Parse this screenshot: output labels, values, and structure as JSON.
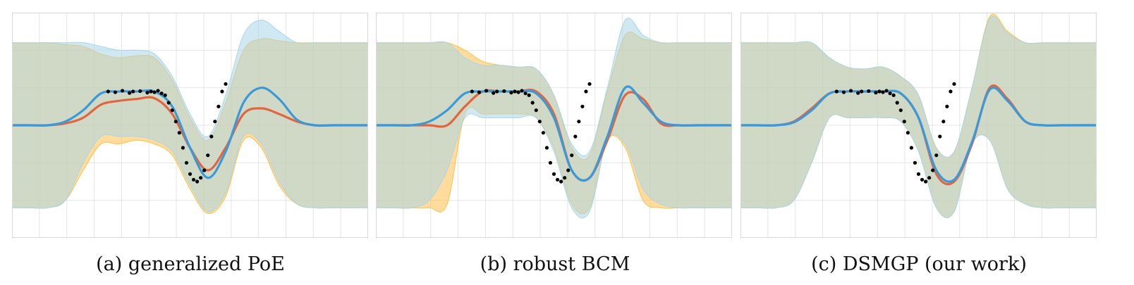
{
  "colors": {
    "orange_band": "#ffc04d",
    "blue_band": "#a9d6e8",
    "overlap_band": "#d5d2ab",
    "orange_line": "#e0663f",
    "blue_line": "#3a9ad9",
    "points": "#000000",
    "grid": "#e4e4e4"
  },
  "chart_data": [
    {
      "type": "line",
      "caption": "(a) generalized PoE",
      "x": [
        0,
        0.05,
        0.1,
        0.15,
        0.2,
        0.25,
        0.3,
        0.35,
        0.4,
        0.45,
        0.5,
        0.55,
        0.6,
        0.65,
        0.7,
        0.75,
        0.8,
        0.85,
        0.9,
        0.95,
        1
      ],
      "series": [
        {
          "color_key": "orange",
          "mean": [
            0,
            0,
            0,
            0.05,
            0.2,
            0.55,
            0.65,
            0.7,
            0.72,
            0.3,
            -0.6,
            -1.2,
            -0.6,
            0.3,
            0.45,
            0.3,
            0.1,
            0,
            0,
            0,
            0
          ],
          "upper": [
            2.2,
            2.2,
            2.2,
            2.15,
            2.1,
            1.9,
            1.8,
            1.85,
            1.8,
            1.2,
            0.2,
            -0.4,
            0.6,
            2.0,
            2.3,
            2.25,
            2.2,
            2.2,
            2.2,
            2.2,
            2.2
          ],
          "lower": [
            -2.2,
            -2.2,
            -2.2,
            -2.0,
            -1.2,
            -0.5,
            -0.5,
            -0.4,
            -0.5,
            -0.8,
            -1.7,
            -2.35,
            -1.9,
            -0.4,
            -0.6,
            -1.6,
            -2.1,
            -2.2,
            -2.2,
            -2.2,
            -2.2
          ]
        },
        {
          "color_key": "blue",
          "mean": [
            0,
            0,
            0,
            0.1,
            0.4,
            0.85,
            0.9,
            0.9,
            0.9,
            0.5,
            -0.6,
            -1.4,
            -0.7,
            0.6,
            1.0,
            0.7,
            0.15,
            0,
            0,
            0,
            0
          ],
          "upper": [
            2.2,
            2.2,
            2.2,
            2.2,
            2.2,
            2.1,
            2.0,
            2.0,
            1.9,
            1.3,
            0.3,
            -0.3,
            0.8,
            2.4,
            2.8,
            2.5,
            2.2,
            2.2,
            2.2,
            2.2,
            2.2
          ],
          "lower": [
            -2.2,
            -2.2,
            -2.2,
            -2.0,
            -1.0,
            -0.3,
            -0.3,
            -0.3,
            -0.4,
            -0.7,
            -1.6,
            -2.3,
            -1.8,
            -0.3,
            -0.5,
            -1.5,
            -2.1,
            -2.2,
            -2.2,
            -2.2,
            -2.2
          ]
        }
      ],
      "points": {
        "x": [
          0.27,
          0.29,
          0.31,
          0.33,
          0.34,
          0.36,
          0.38,
          0.39,
          0.4,
          0.41,
          0.42,
          0.43,
          0.44,
          0.45,
          0.46,
          0.47,
          0.48,
          0.49,
          0.5,
          0.51,
          0.52,
          0.53,
          0.54,
          0.55,
          0.56,
          0.57,
          0.58,
          0.59,
          0.6
        ],
        "y": [
          0.9,
          0.88,
          0.92,
          0.86,
          0.9,
          0.91,
          0.87,
          0.9,
          0.88,
          0.92,
          0.85,
          0.8,
          0.6,
          0.4,
          0.1,
          -0.2,
          -0.6,
          -1.0,
          -1.3,
          -1.45,
          -1.5,
          -1.4,
          -1.2,
          -0.8,
          -0.3,
          0.1,
          0.5,
          0.9,
          1.1
        ]
      },
      "ylim": [
        -3,
        3
      ],
      "xlim": [
        0,
        1
      ]
    },
    {
      "type": "line",
      "caption": "(b) robust BCM",
      "x": [
        0,
        0.05,
        0.1,
        0.15,
        0.2,
        0.25,
        0.3,
        0.35,
        0.4,
        0.45,
        0.5,
        0.55,
        0.6,
        0.65,
        0.7,
        0.75,
        0.8,
        0.85,
        0.9,
        0.95,
        1
      ],
      "series": [
        {
          "color_key": "orange",
          "mean": [
            0,
            0,
            0,
            0,
            0,
            0.5,
            0.9,
            0.9,
            0.9,
            0.9,
            0.3,
            -1.2,
            -1.4,
            -0.4,
            0.8,
            0.7,
            0.05,
            0,
            0,
            0,
            0
          ],
          "upper": [
            2.2,
            2.2,
            2.2,
            2.2,
            2.2,
            2.0,
            1.7,
            1.6,
            1.55,
            1.5,
            0.8,
            -0.6,
            -0.8,
            0.9,
            2.4,
            2.3,
            2.2,
            2.2,
            2.2,
            2.2,
            2.2
          ],
          "lower": [
            -2.2,
            -2.2,
            -2.2,
            -2.2,
            -2.1,
            0.3,
            0.3,
            0.3,
            0.3,
            0.2,
            -0.6,
            -2.1,
            -2.2,
            -0.4,
            -0.6,
            -2.0,
            -2.2,
            -2.2,
            -2.2,
            -2.2,
            -2.2
          ]
        },
        {
          "color_key": "blue",
          "mean": [
            0,
            0,
            0,
            0.1,
            0.4,
            0.85,
            0.9,
            0.9,
            0.9,
            0.85,
            0.2,
            -1.2,
            -1.4,
            -0.3,
            1.0,
            0.6,
            0.1,
            0,
            0,
            0,
            0
          ],
          "upper": [
            2.2,
            2.2,
            2.2,
            2.2,
            2.2,
            1.8,
            1.6,
            1.6,
            1.55,
            1.5,
            0.8,
            -0.5,
            -0.7,
            1.0,
            2.8,
            2.4,
            2.2,
            2.2,
            2.2,
            2.2,
            2.2
          ],
          "lower": [
            -2.2,
            -2.2,
            -2.2,
            -2.0,
            -1.2,
            0.2,
            0.2,
            0.2,
            0.2,
            0.2,
            -0.7,
            -2.2,
            -2.3,
            -0.4,
            -0.5,
            -1.7,
            -2.1,
            -2.2,
            -2.2,
            -2.2,
            -2.2
          ]
        }
      ],
      "points": {
        "x": [
          0.27,
          0.29,
          0.31,
          0.33,
          0.34,
          0.36,
          0.38,
          0.39,
          0.4,
          0.41,
          0.42,
          0.43,
          0.44,
          0.45,
          0.46,
          0.47,
          0.48,
          0.49,
          0.5,
          0.51,
          0.52,
          0.53,
          0.54,
          0.55,
          0.56,
          0.57,
          0.58,
          0.59,
          0.6
        ],
        "y": [
          0.9,
          0.88,
          0.92,
          0.86,
          0.9,
          0.91,
          0.87,
          0.9,
          0.88,
          0.92,
          0.85,
          0.8,
          0.6,
          0.4,
          0.1,
          -0.2,
          -0.6,
          -1.0,
          -1.3,
          -1.45,
          -1.5,
          -1.4,
          -1.2,
          -0.8,
          -0.3,
          0.1,
          0.5,
          0.9,
          1.1
        ]
      },
      "ylim": [
        -3,
        3
      ],
      "xlim": [
        0,
        1
      ]
    },
    {
      "type": "line",
      "caption": "(c) DSMGP (our work)",
      "x": [
        0,
        0.05,
        0.1,
        0.15,
        0.2,
        0.25,
        0.3,
        0.35,
        0.4,
        0.45,
        0.5,
        0.55,
        0.6,
        0.65,
        0.7,
        0.75,
        0.8,
        0.85,
        0.9,
        0.95,
        1
      ],
      "series": [
        {
          "color_key": "orange",
          "mean": [
            0,
            0,
            0,
            0.1,
            0.45,
            0.85,
            0.9,
            0.9,
            0.9,
            0.85,
            0.2,
            -1.3,
            -1.5,
            -0.5,
            1.0,
            0.7,
            0.1,
            0,
            0,
            0,
            0
          ],
          "upper": [
            2.2,
            2.2,
            2.2,
            2.2,
            2.2,
            1.8,
            1.55,
            1.5,
            1.55,
            1.3,
            0.8,
            -0.6,
            -0.7,
            1.0,
            2.9,
            2.5,
            2.2,
            2.2,
            2.2,
            2.2,
            2.2
          ],
          "lower": [
            -2.2,
            -2.2,
            -2.2,
            -2.0,
            -1.0,
            0.2,
            0.2,
            0.2,
            0.2,
            0.1,
            -0.7,
            -2.2,
            -2.3,
            -0.5,
            -0.4,
            -1.7,
            -2.1,
            -2.2,
            -2.2,
            -2.2,
            -2.2
          ]
        },
        {
          "color_key": "blue",
          "mean": [
            0,
            0,
            0,
            0.08,
            0.4,
            0.85,
            0.9,
            0.9,
            0.9,
            0.85,
            0.2,
            -1.2,
            -1.45,
            -0.45,
            0.95,
            0.65,
            0.1,
            0,
            0,
            0,
            0
          ],
          "upper": [
            2.2,
            2.2,
            2.2,
            2.2,
            2.2,
            1.8,
            1.55,
            1.5,
            1.55,
            1.3,
            0.8,
            -0.6,
            -0.7,
            1.0,
            2.85,
            2.45,
            2.2,
            2.2,
            2.2,
            2.2,
            2.2
          ],
          "lower": [
            -2.2,
            -2.2,
            -2.2,
            -2.0,
            -1.0,
            0.2,
            0.2,
            0.2,
            0.2,
            0.1,
            -0.7,
            -2.2,
            -2.3,
            -0.5,
            -0.4,
            -1.7,
            -2.1,
            -2.2,
            -2.2,
            -2.2,
            -2.2
          ]
        }
      ],
      "points": {
        "x": [
          0.27,
          0.29,
          0.31,
          0.33,
          0.34,
          0.36,
          0.38,
          0.39,
          0.4,
          0.41,
          0.42,
          0.43,
          0.44,
          0.45,
          0.46,
          0.47,
          0.48,
          0.49,
          0.5,
          0.51,
          0.52,
          0.53,
          0.54,
          0.55,
          0.56,
          0.57,
          0.58,
          0.59,
          0.6
        ],
        "y": [
          0.9,
          0.88,
          0.92,
          0.86,
          0.9,
          0.91,
          0.87,
          0.9,
          0.88,
          0.92,
          0.85,
          0.8,
          0.6,
          0.4,
          0.1,
          -0.2,
          -0.6,
          -1.0,
          -1.3,
          -1.45,
          -1.5,
          -1.4,
          -1.2,
          -0.8,
          -0.3,
          0.1,
          0.5,
          0.9,
          1.1
        ]
      },
      "ylim": [
        -3,
        3
      ],
      "xlim": [
        0,
        1
      ]
    }
  ]
}
